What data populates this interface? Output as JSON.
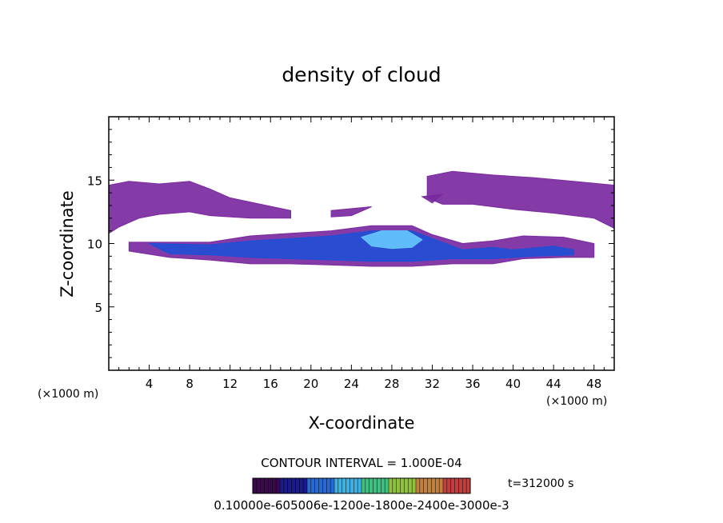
{
  "chart_data": {
    "type": "heatmap",
    "title": "density of cloud",
    "xlabel": "X-coordinate",
    "ylabel": "Z-coordinate",
    "x_unit_left": "(×1000 m)",
    "x_unit_right": "(×1000 m)",
    "xlim": [
      0,
      50
    ],
    "ylim": [
      0,
      20
    ],
    "xticks": [
      4,
      8,
      12,
      16,
      20,
      24,
      28,
      32,
      36,
      40,
      44,
      48
    ],
    "yticks": [
      5,
      10,
      15
    ],
    "contour_interval": "CONTOUR INTERVAL = 1.000E-04",
    "time_label": "t=312000 s",
    "colorbar_label": "0.10000e-605006e-1200e-1800e-2400e-3000e-3",
    "colors": {
      "low": "#7a2aa0",
      "mid": "#1f4fd6",
      "high": "#66c8ff",
      "colorbar": [
        "#3a0a4a",
        "#1a1a8a",
        "#2a6ad0",
        "#40b0e0",
        "#40c080",
        "#90c040",
        "#c08040",
        "#c04040"
      ]
    },
    "regions": [
      {
        "level": "low",
        "points": [
          [
            0,
            14.6
          ],
          [
            2,
            14.9
          ],
          [
            5,
            14.7
          ],
          [
            8,
            14.9
          ],
          [
            10,
            14.3
          ],
          [
            12,
            13.6
          ],
          [
            15,
            13.1
          ],
          [
            18,
            12.6
          ],
          [
            18,
            12.0
          ],
          [
            14,
            12.0
          ],
          [
            10,
            12.2
          ],
          [
            8,
            12.5
          ],
          [
            5,
            12.3
          ],
          [
            3,
            12.0
          ],
          [
            1,
            11.3
          ],
          [
            0,
            10.8
          ]
        ]
      },
      {
        "level": "low",
        "points": [
          [
            22,
            12.6
          ],
          [
            26,
            12.9
          ],
          [
            24,
            12.2
          ],
          [
            22,
            12.1
          ]
        ]
      },
      {
        "level": "low",
        "points": [
          [
            31,
            13.7
          ],
          [
            33,
            13.9
          ],
          [
            32,
            13.2
          ]
        ]
      },
      {
        "level": "low",
        "points": [
          [
            31.5,
            15.3
          ],
          [
            34,
            15.7
          ],
          [
            38,
            15.4
          ],
          [
            42,
            15.2
          ],
          [
            46,
            14.9
          ],
          [
            50,
            14.6
          ],
          [
            50,
            11.2
          ],
          [
            48,
            12.0
          ],
          [
            44,
            12.4
          ],
          [
            40,
            12.7
          ],
          [
            36,
            13.1
          ],
          [
            33,
            13.1
          ],
          [
            31.5,
            13.6
          ]
        ]
      },
      {
        "level": "low",
        "points": [
          [
            2,
            10.1
          ],
          [
            6,
            10.1
          ],
          [
            10,
            10.1
          ],
          [
            14,
            10.6
          ],
          [
            18,
            10.8
          ],
          [
            22,
            11.0
          ],
          [
            26,
            11.4
          ],
          [
            30,
            11.4
          ],
          [
            32,
            10.7
          ],
          [
            35,
            10.0
          ],
          [
            38,
            10.2
          ],
          [
            41,
            10.6
          ],
          [
            45,
            10.5
          ],
          [
            48,
            10.0
          ],
          [
            48,
            8.9
          ],
          [
            45,
            8.9
          ],
          [
            41,
            8.8
          ],
          [
            38,
            8.4
          ],
          [
            34,
            8.4
          ],
          [
            30,
            8.2
          ],
          [
            26,
            8.2
          ],
          [
            22,
            8.3
          ],
          [
            18,
            8.4
          ],
          [
            14,
            8.4
          ],
          [
            10,
            8.7
          ],
          [
            6,
            8.9
          ],
          [
            2,
            9.4
          ]
        ]
      },
      {
        "level": "mid",
        "points": [
          [
            4,
            10.0
          ],
          [
            10,
            9.9
          ],
          [
            14,
            10.2
          ],
          [
            18,
            10.4
          ],
          [
            22,
            10.6
          ],
          [
            26,
            11.0
          ],
          [
            30,
            11.0
          ],
          [
            32,
            10.4
          ],
          [
            35,
            9.5
          ],
          [
            38,
            9.7
          ],
          [
            40,
            9.5
          ],
          [
            44,
            9.8
          ],
          [
            46,
            9.5
          ],
          [
            46,
            9.1
          ],
          [
            42,
            9.0
          ],
          [
            38,
            8.8
          ],
          [
            34,
            8.8
          ],
          [
            30,
            8.6
          ],
          [
            26,
            8.6
          ],
          [
            22,
            8.7
          ],
          [
            18,
            8.8
          ],
          [
            14,
            8.9
          ],
          [
            10,
            9.1
          ],
          [
            6,
            9.2
          ]
        ]
      },
      {
        "level": "high",
        "points": [
          [
            25,
            10.5
          ],
          [
            27,
            11.0
          ],
          [
            29.5,
            11.0
          ],
          [
            31,
            10.3
          ],
          [
            30,
            9.7
          ],
          [
            28,
            9.6
          ],
          [
            26,
            9.8
          ]
        ]
      }
    ]
  }
}
